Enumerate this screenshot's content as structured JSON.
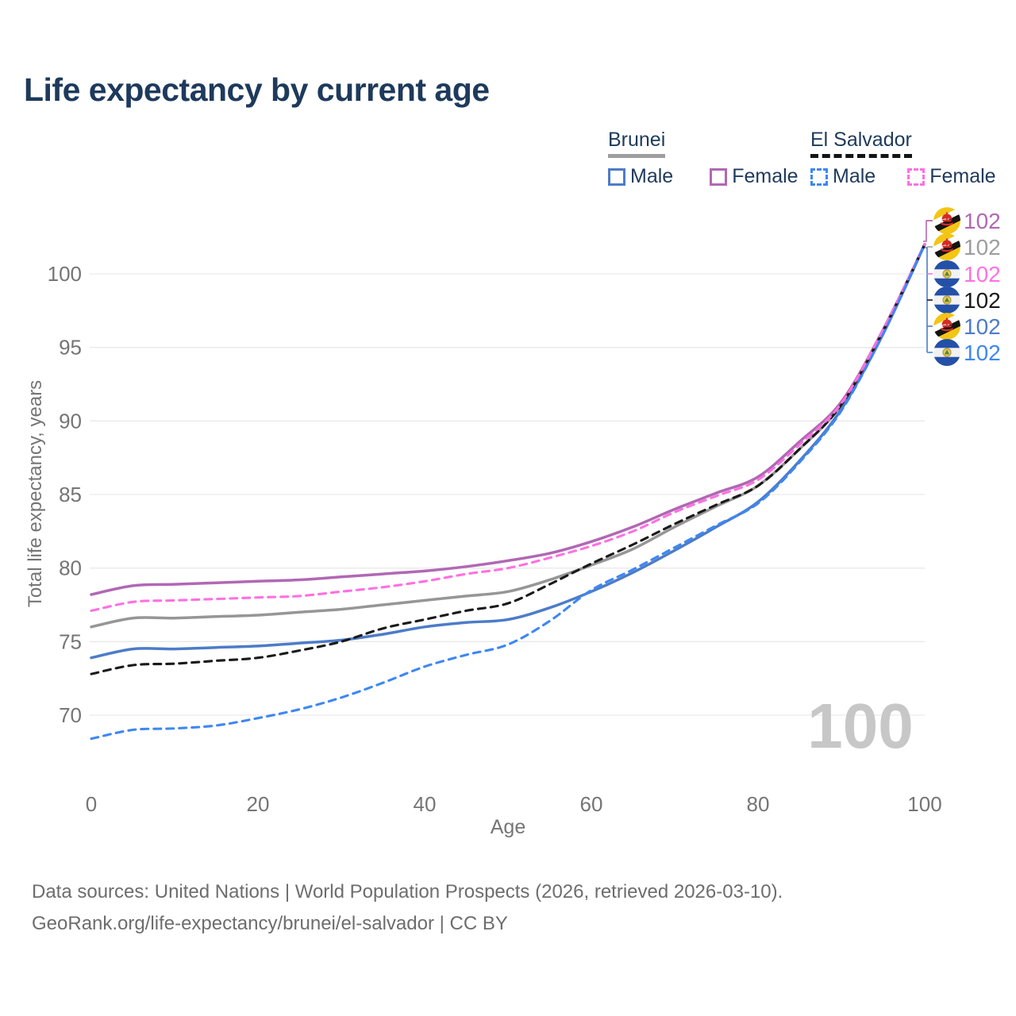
{
  "page": {
    "title": "Life expectancy by current age"
  },
  "legend": {
    "groups": [
      {
        "label": "Brunei",
        "line_style": "solid",
        "underline_color": "#9e9e9e",
        "items": [
          {
            "label": "Male",
            "series": "brunei-male",
            "color": "#4d7cc7",
            "dashed": false
          },
          {
            "label": "Female",
            "series": "brunei-female",
            "color": "#b168b4",
            "dashed": false
          }
        ]
      },
      {
        "label": "El Salvador",
        "line_style": "dashed",
        "underline_color": "#141414",
        "items": [
          {
            "label": "Male",
            "series": "el-salvador-male",
            "color": "#3e87f2",
            "dashed": true
          },
          {
            "label": "Female",
            "series": "el-salvador-female",
            "color": "#ff70e2",
            "dashed": true
          }
        ]
      }
    ]
  },
  "axes": {
    "y_title": "Total life expectancy, years",
    "x_title": "Age",
    "y_ticks": [
      70,
      75,
      80,
      85,
      90,
      95,
      100
    ],
    "x_ticks": [
      0,
      20,
      40,
      60,
      80,
      100
    ]
  },
  "watermark": "100",
  "end_labels": [
    {
      "flag": "brunei",
      "icon": "brunei-flag-icon",
      "value": "102",
      "color": "#b168b4",
      "series": "brunei-female"
    },
    {
      "flag": "brunei",
      "icon": "brunei-flag-icon",
      "value": "102",
      "color": "#9e9e9e",
      "series": "brunei-combined"
    },
    {
      "flag": "el-salvador",
      "icon": "el-salvador-flag-icon",
      "value": "102",
      "color": "#ff70e2",
      "series": "el-salvador-female"
    },
    {
      "flag": "el-salvador",
      "icon": "el-salvador-flag-icon",
      "value": "102",
      "color": "#1a1a1a",
      "series": "el-salvador-combined"
    },
    {
      "flag": "brunei",
      "icon": "brunei-flag-icon",
      "value": "102",
      "color": "#4d7cc7",
      "series": "brunei-male"
    },
    {
      "flag": "el-salvador",
      "icon": "el-salvador-flag-icon",
      "value": "102",
      "color": "#3e87f2",
      "series": "el-salvador-male"
    }
  ],
  "footer": {
    "line1": "Data sources: United Nations | World Population Prospects (2026, retrieved 2026-03-10).",
    "line2": "GeoRank.org/life-expectancy/brunei/el-salvador | CC BY"
  },
  "chart_data": {
    "type": "line",
    "title": "Life expectancy by current age",
    "xlabel": "Age",
    "ylabel": "Total life expectancy, years",
    "xlim": [
      0,
      100
    ],
    "ylim_gridlines": [
      70,
      100
    ],
    "grid": "horizontal-only",
    "x": [
      0,
      5,
      10,
      15,
      20,
      25,
      30,
      35,
      40,
      45,
      50,
      55,
      60,
      65,
      70,
      75,
      80,
      85,
      90,
      95,
      100
    ],
    "series": [
      {
        "id": "brunei-combined",
        "name": "Brunei",
        "color": "#969696",
        "dashed": false,
        "values": [
          76.0,
          76.6,
          76.6,
          76.7,
          76.8,
          77.0,
          77.2,
          77.5,
          77.8,
          78.1,
          78.4,
          79.2,
          80.2,
          81.3,
          82.8,
          84.2,
          85.6,
          88.1,
          91.1,
          96.1,
          102
        ]
      },
      {
        "id": "brunei-female",
        "name": "Brunei Female",
        "color": "#b168b4",
        "dashed": false,
        "values": [
          78.2,
          78.8,
          78.9,
          79.0,
          79.1,
          79.2,
          79.4,
          79.6,
          79.8,
          80.1,
          80.5,
          81.0,
          81.8,
          82.8,
          84.0,
          85.1,
          86.2,
          88.6,
          91.3,
          96.2,
          102
        ]
      },
      {
        "id": "brunei-male",
        "name": "Brunei Male",
        "color": "#4d7cc7",
        "dashed": false,
        "values": [
          73.9,
          74.5,
          74.5,
          74.6,
          74.7,
          74.9,
          75.1,
          75.5,
          76.0,
          76.3,
          76.5,
          77.3,
          78.4,
          79.7,
          81.2,
          82.8,
          84.5,
          87.3,
          90.8,
          95.9,
          102
        ]
      },
      {
        "id": "el-salvador-combined",
        "name": "El Salvador",
        "color": "#1a1a1a",
        "dashed": true,
        "values": [
          72.8,
          73.4,
          73.5,
          73.7,
          73.9,
          74.4,
          75.0,
          75.9,
          76.5,
          77.1,
          77.6,
          78.9,
          80.3,
          81.6,
          83.0,
          84.3,
          85.6,
          88.1,
          91.1,
          96.1,
          102
        ]
      },
      {
        "id": "el-salvador-female",
        "name": "El Salvador Female",
        "color": "#ff70e2",
        "dashed": true,
        "values": [
          77.1,
          77.7,
          77.8,
          77.9,
          78.0,
          78.1,
          78.4,
          78.7,
          79.1,
          79.6,
          80.0,
          80.7,
          81.5,
          82.5,
          83.8,
          84.9,
          86.0,
          88.4,
          91.2,
          96.2,
          102
        ]
      },
      {
        "id": "el-salvador-male",
        "name": "El Salvador Male",
        "color": "#3e87f2",
        "dashed": true,
        "values": [
          68.4,
          69.0,
          69.1,
          69.3,
          69.8,
          70.4,
          71.2,
          72.2,
          73.3,
          74.1,
          74.8,
          76.4,
          78.5,
          79.9,
          81.4,
          82.9,
          84.4,
          87.2,
          90.7,
          95.9,
          102
        ]
      }
    ],
    "end_values_at_age_100": 102
  }
}
